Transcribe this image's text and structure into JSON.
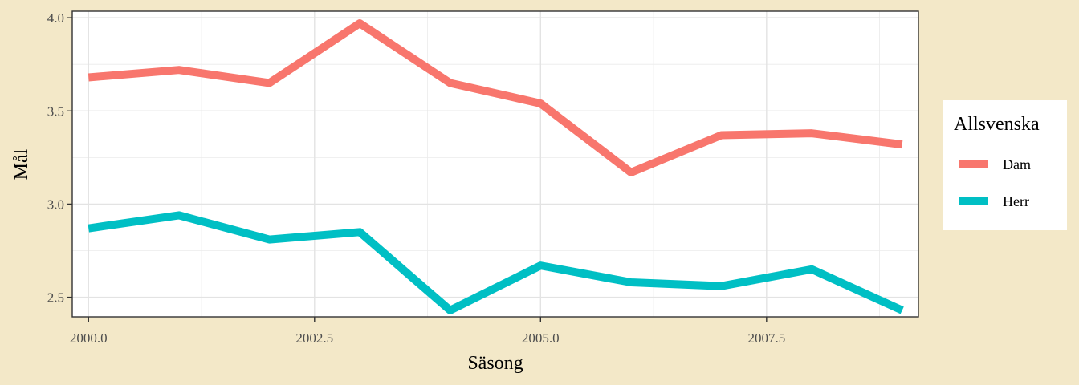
{
  "chart_data": {
    "type": "line",
    "xlabel": "Säsong",
    "ylabel": "Mål",
    "xlim": [
      1999.82,
      2009.18
    ],
    "ylim": [
      2.395,
      4.035
    ],
    "x_ticks": [
      "2000.0",
      "2002.5",
      "2005.0",
      "2007.5"
    ],
    "x_tick_values": [
      2000.0,
      2002.5,
      2005.0,
      2007.5
    ],
    "y_ticks": [
      "2.5",
      "3.0",
      "3.5",
      "4.0"
    ],
    "y_tick_values": [
      2.5,
      3.0,
      3.5,
      4.0
    ],
    "grid": true,
    "legend": {
      "title": "Allsvenska",
      "placement": "right"
    },
    "x": [
      2000,
      2001,
      2002,
      2003,
      2004,
      2005,
      2006,
      2007,
      2008,
      2009
    ],
    "series": [
      {
        "name": "Dam",
        "color": "#f8766d",
        "values": [
          3.68,
          3.72,
          3.65,
          3.97,
          3.65,
          3.54,
          3.17,
          3.37,
          3.38,
          3.32
        ]
      },
      {
        "name": "Herr",
        "color": "#00bfc4",
        "values": [
          2.87,
          2.94,
          2.81,
          2.85,
          2.43,
          2.67,
          2.58,
          2.56,
          2.65,
          2.43
        ]
      }
    ]
  }
}
